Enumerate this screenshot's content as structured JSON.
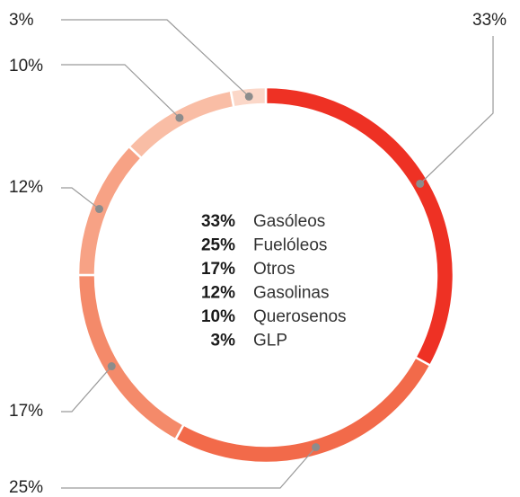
{
  "chart_data": {
    "type": "donut",
    "categories": [
      "Gasóleos",
      "Fuelóleos",
      "Otros",
      "Gasolinas",
      "Querosenos",
      "GLP"
    ],
    "values": [
      33,
      25,
      17,
      12,
      10,
      3
    ],
    "labels": [
      "33%",
      "25%",
      "17%",
      "12%",
      "10%",
      "3%"
    ],
    "colors": [
      "#ee3124",
      "#f26a4a",
      "#f48a6a",
      "#f7a285",
      "#f9bda5",
      "#fbd7c8"
    ],
    "legend_placement": "center"
  }
}
